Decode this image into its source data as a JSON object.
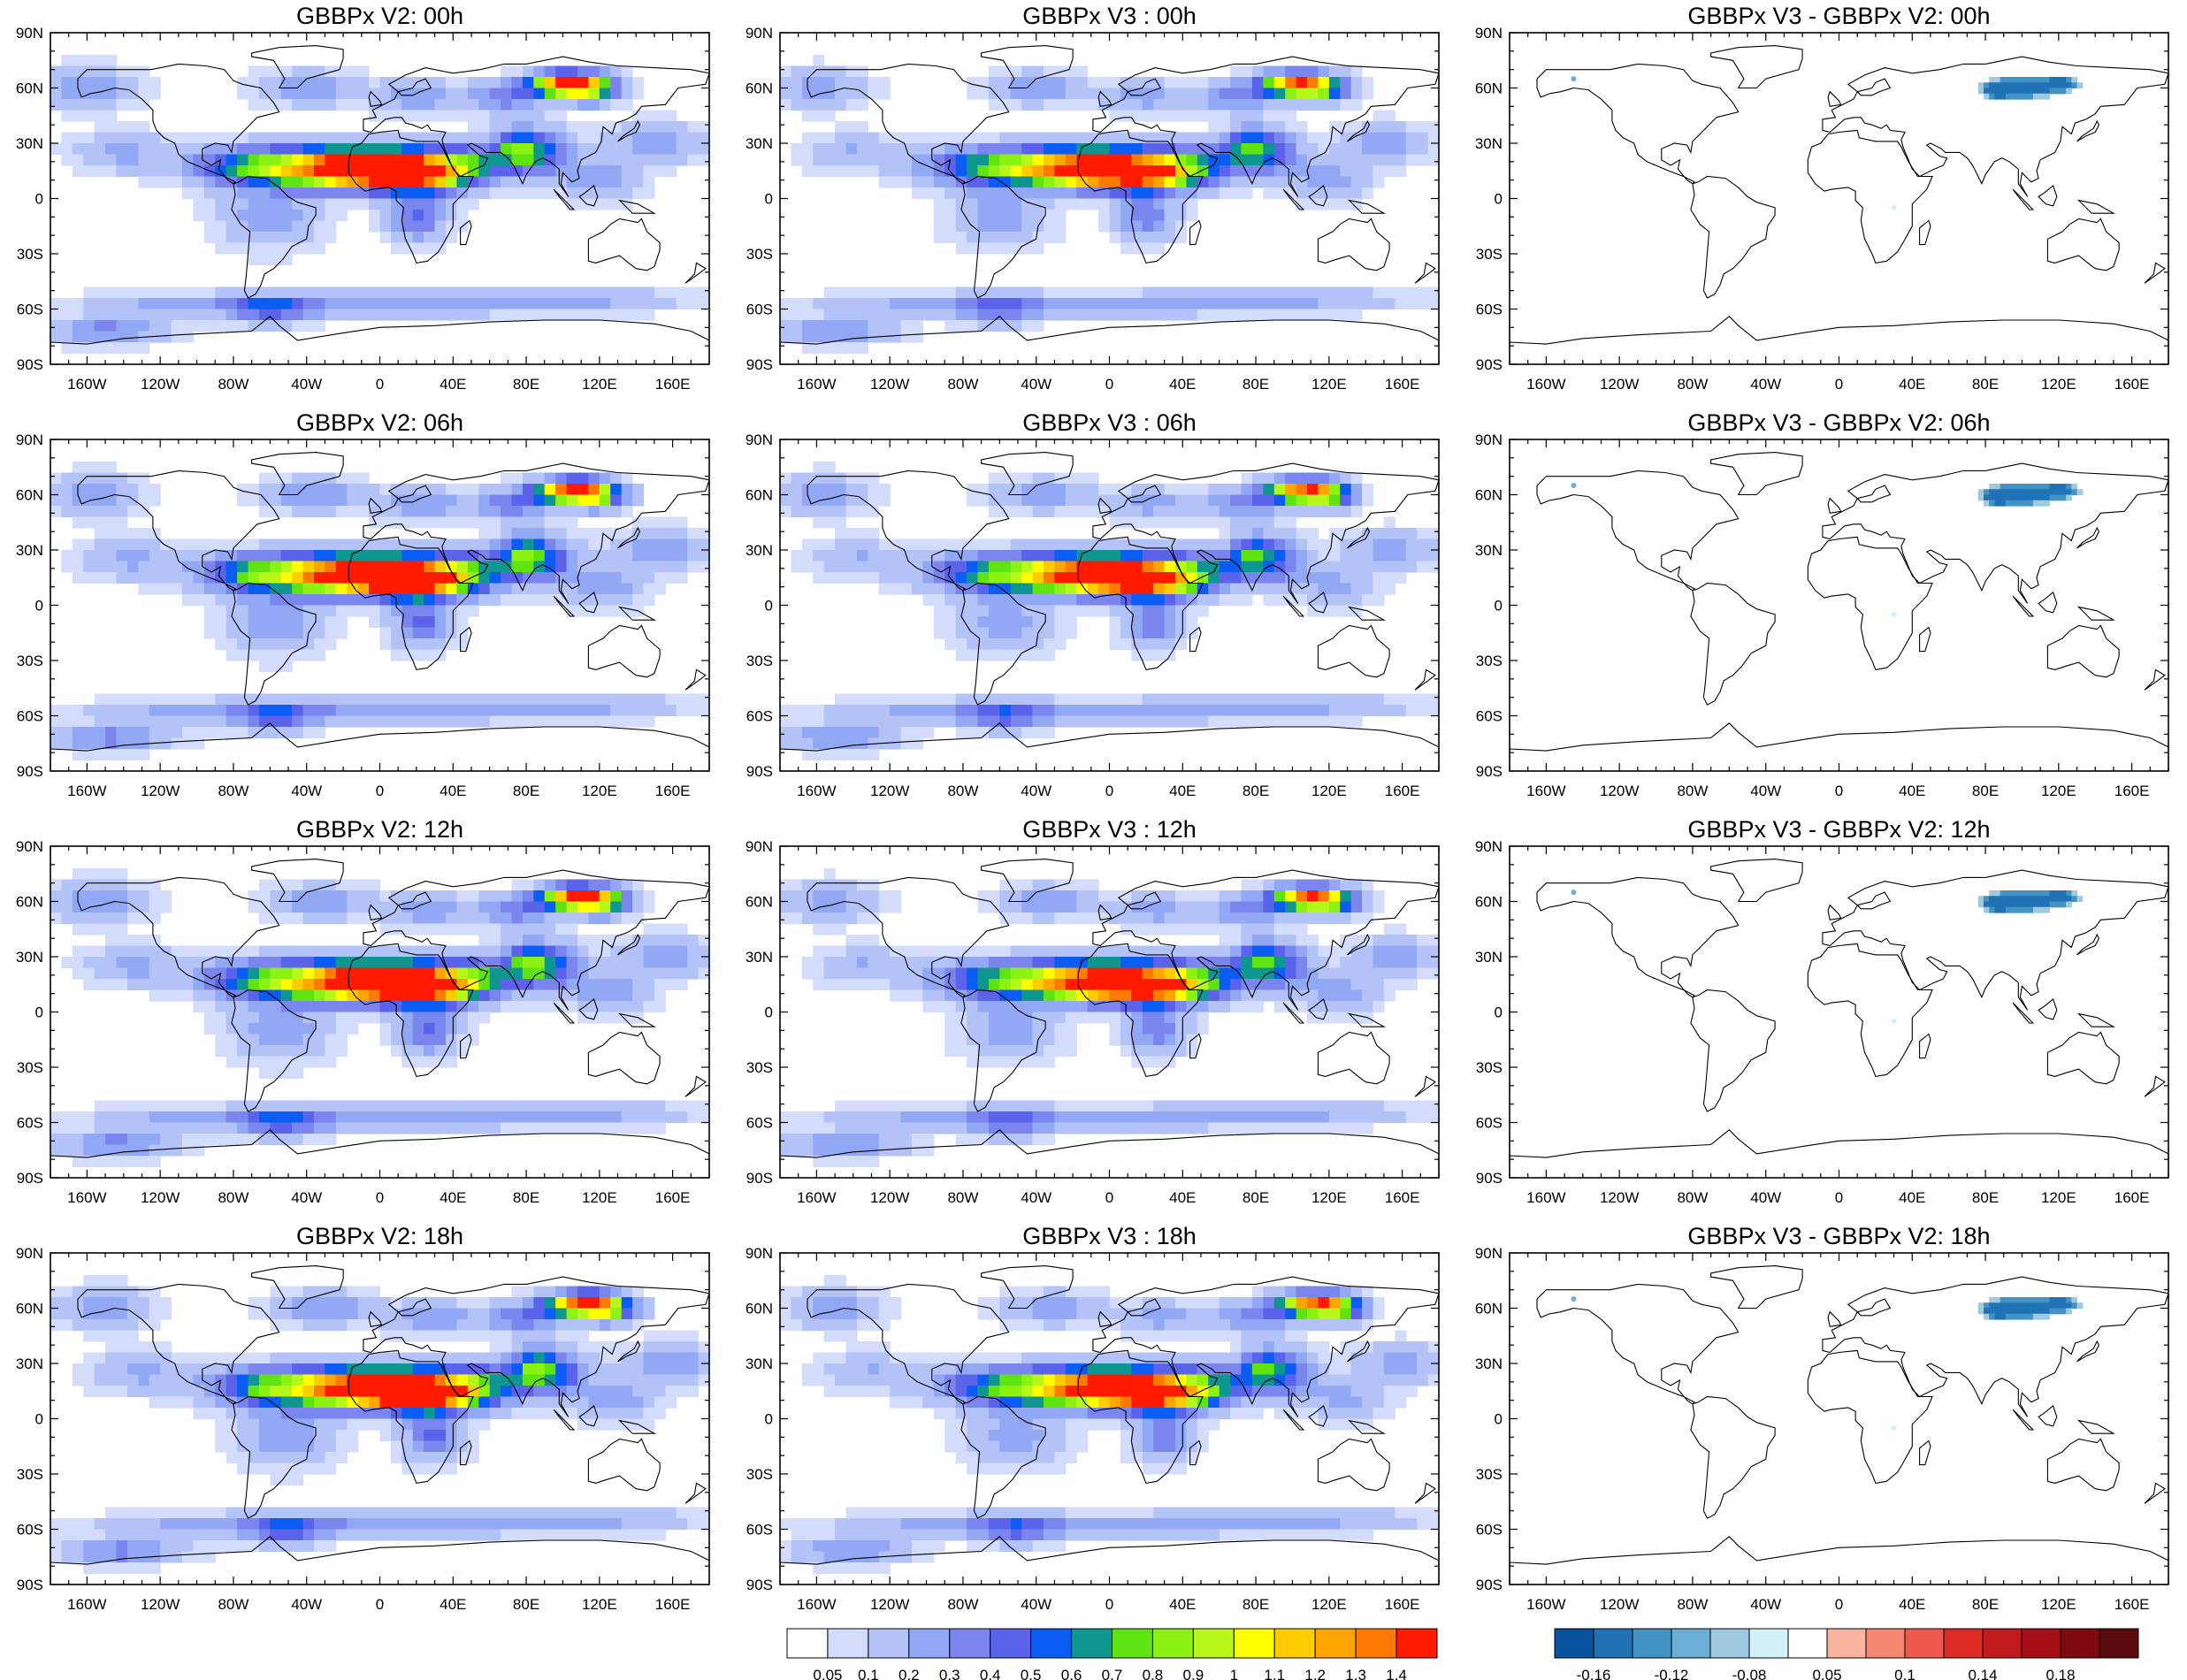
{
  "panels": [
    {
      "title": "GBBPx V2: 00h",
      "kind": "abs",
      "shift": 0.0
    },
    {
      "title": "GBBPx V3 : 00h",
      "kind": "abs3",
      "shift": 0.0
    },
    {
      "title": "GBBPx V3 - GBBPx V2: 00h",
      "kind": "diff",
      "shift": 0.0
    },
    {
      "title": "GBBPx V2: 06h",
      "kind": "abs",
      "shift": 0.15
    },
    {
      "title": "GBBPx V3 : 06h",
      "kind": "abs3",
      "shift": 0.15
    },
    {
      "title": "GBBPx V3 - GBBPx V2: 06h",
      "kind": "diff",
      "shift": 0.15
    },
    {
      "title": "GBBPx V2: 12h",
      "kind": "abs",
      "shift": 0.3
    },
    {
      "title": "GBBPx V3 : 12h",
      "kind": "abs3",
      "shift": 0.3
    },
    {
      "title": "GBBPx V3 - GBBPx V2: 12h",
      "kind": "diff",
      "shift": 0.3
    },
    {
      "title": "GBBPx V2: 18h",
      "kind": "abs",
      "shift": 0.45
    },
    {
      "title": "GBBPx V3 : 18h",
      "kind": "abs3",
      "shift": 0.45
    },
    {
      "title": "GBBPx V3 - GBBPx V2: 18h",
      "kind": "diff",
      "shift": 0.45
    }
  ],
  "axes": {
    "lon_labels": [
      "160W",
      "120W",
      "80W",
      "40W",
      "0",
      "40E",
      "80E",
      "120E",
      "160E"
    ],
    "lon_values": [
      -160,
      -120,
      -80,
      -40,
      0,
      40,
      80,
      120,
      160
    ],
    "lat_labels": [
      "90N",
      "60N",
      "30N",
      "0",
      "30S",
      "60S",
      "90S"
    ],
    "lat_values": [
      90,
      60,
      30,
      0,
      -30,
      -60,
      -90
    ],
    "lon_range": [
      -180,
      180
    ],
    "lat_range": [
      -90,
      90
    ]
  },
  "colorbars": {
    "absolute": {
      "labels": [
        "0.05",
        "0.1",
        "0.2",
        "0.3",
        "0.4",
        "0.5",
        "0.6",
        "0.7",
        "0.8",
        "0.9",
        "1",
        "1.1",
        "1.2",
        "1.3",
        "1.4"
      ],
      "colors": [
        "#ffffff",
        "#d3dcfb",
        "#b3c3f8",
        "#93a8f4",
        "#7a86ee",
        "#5a63e9",
        "#0a5cf2",
        "#0f9690",
        "#5fe411",
        "#8cf212",
        "#b7f81a",
        "#ffff00",
        "#ffcc00",
        "#ffa500",
        "#ff7a00",
        "#ff1a00"
      ]
    },
    "difference": {
      "labels": [
        "-0.16",
        "-0.12",
        "-0.08",
        "0.05",
        "0.1",
        "0.14",
        "0.18"
      ],
      "label_slots": [
        1,
        3,
        5,
        7,
        9,
        11,
        13
      ],
      "colors": [
        "#08519c",
        "#2171b5",
        "#4292c6",
        "#6baed6",
        "#9ecae1",
        "#d4f1f9",
        "#ffffff",
        "#fbb4a0",
        "#f58670",
        "#ef5a4c",
        "#de2d26",
        "#c01a1d",
        "#a50f15",
        "#7f0a10",
        "#5a0a0a"
      ]
    }
  },
  "map_colors": {
    "pale_blue": "#d3dcfb",
    "light_blue": "#b3c3f8",
    "mid_blue": "#93a8f4",
    "violet": "#7a86ee",
    "green": "#5fe411",
    "yellow": "#ffff00",
    "red": "#ff1a00",
    "diff_blue": "#2171b5",
    "coast": "#000000"
  }
}
